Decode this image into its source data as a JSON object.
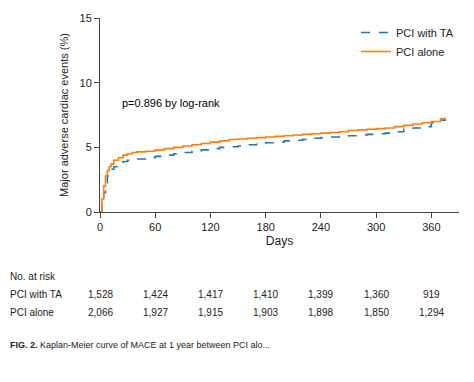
{
  "chart_data": {
    "type": "step",
    "title": "",
    "xlabel": "Days",
    "ylabel": "Major adverse cardiac events (%)",
    "x": [
      0,
      2,
      4,
      6,
      8,
      10,
      12,
      15,
      20,
      25,
      30,
      35,
      40,
      50,
      60,
      70,
      80,
      90,
      100,
      110,
      120,
      130,
      140,
      150,
      160,
      170,
      180,
      190,
      200,
      210,
      220,
      230,
      240,
      250,
      260,
      270,
      280,
      290,
      300,
      310,
      320,
      330,
      340,
      350,
      360,
      370,
      375
    ],
    "series": [
      {
        "name": "PCI with TA",
        "line_style": "dashed",
        "values": [
          0,
          0.8,
          1.5,
          2.2,
          2.8,
          3.1,
          3.3,
          3.5,
          3.7,
          3.9,
          4.0,
          4.05,
          4.1,
          4.2,
          4.3,
          4.4,
          4.5,
          4.6,
          4.7,
          4.8,
          4.9,
          5.0,
          5.05,
          5.1,
          5.2,
          5.3,
          5.35,
          5.4,
          5.5,
          5.55,
          5.6,
          5.7,
          5.75,
          5.8,
          5.85,
          5.9,
          5.95,
          6.0,
          6.05,
          6.1,
          6.2,
          6.4,
          6.5,
          6.6,
          6.9,
          7.1,
          7.2
        ]
      },
      {
        "name": "PCI alone",
        "line_style": "solid",
        "values": [
          0,
          1.0,
          2.0,
          2.8,
          3.2,
          3.5,
          3.7,
          4.0,
          4.2,
          4.4,
          4.5,
          4.6,
          4.65,
          4.7,
          4.8,
          4.9,
          5.0,
          5.1,
          5.2,
          5.3,
          5.4,
          5.5,
          5.6,
          5.65,
          5.7,
          5.75,
          5.8,
          5.85,
          5.9,
          5.95,
          6.0,
          6.05,
          6.1,
          6.15,
          6.2,
          6.3,
          6.35,
          6.4,
          6.45,
          6.5,
          6.6,
          6.7,
          6.8,
          6.9,
          7.0,
          7.2,
          7.3
        ]
      }
    ],
    "xlim": [
      0,
      390
    ],
    "ylim": [
      0,
      15
    ],
    "xticks": [
      0,
      60,
      120,
      180,
      240,
      300,
      360
    ],
    "yticks": [
      0,
      5,
      10,
      15
    ],
    "grid": false,
    "legend": "upper right",
    "annotation": {
      "text": "p=0.896 by log-rank",
      "x": 22,
      "y": 7.8
    },
    "at_risk": {
      "label": "No. at risk",
      "x": [
        0,
        60,
        120,
        180,
        240,
        300,
        360
      ],
      "rows": [
        {
          "name": "PCI with TA",
          "values": [
            "1,528",
            "1,424",
            "1,417",
            "1,410",
            "1,399",
            "1,360",
            "919"
          ]
        },
        {
          "name": "PCI alone",
          "values": [
            "2,066",
            "1,927",
            "1,915",
            "1,903",
            "1,898",
            "1,850",
            "1,294"
          ]
        }
      ]
    },
    "caption_label": "FIG. 2.",
    "caption": "Kaplan-Meier curve of MACE at 1 year between PCI alo..."
  }
}
